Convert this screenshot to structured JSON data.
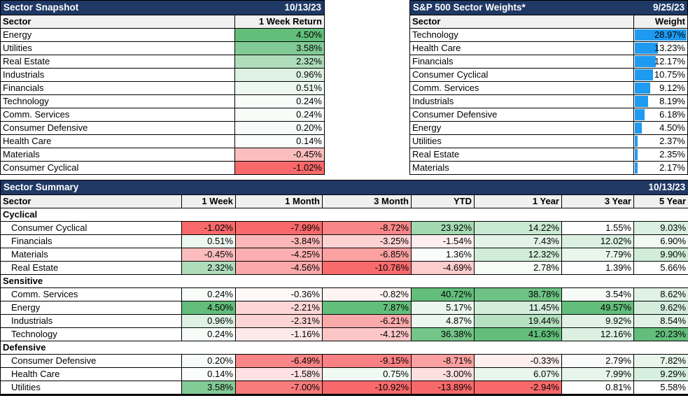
{
  "colors": {
    "title_bar_navy": "#1F3864",
    "header_row_gray": "#F0F0F0",
    "scale_negative_red": "#F8696B",
    "scale_positive_green": "#63BE7B",
    "scale_midpoint_white": "#FFFFFF",
    "weight_bar_blue": "#1E9BF0"
  },
  "chart_data": [
    {
      "type": "table",
      "name": "sector_snapshot",
      "title": "Sector Snapshot",
      "date": "10/13/23",
      "columns": [
        "Sector",
        "1 Week Return"
      ],
      "value_unit": "%",
      "heatmap": "red-white-green per column",
      "rows": [
        [
          "Energy",
          4.5
        ],
        [
          "Utilities",
          3.58
        ],
        [
          "Real Estate",
          2.32
        ],
        [
          "Industrials",
          0.96
        ],
        [
          "Financials",
          0.51
        ],
        [
          "Technology",
          0.24
        ],
        [
          "Comm. Services",
          0.24
        ],
        [
          "Consumer Defensive",
          0.2
        ],
        [
          "Health Care",
          0.14
        ],
        [
          "Materials",
          -0.45
        ],
        [
          "Consumer Cyclical",
          -1.02
        ]
      ]
    },
    {
      "type": "table",
      "name": "sp500_sector_weights",
      "title": "S&P 500 Sector Weights*",
      "date": "9/25/23",
      "columns": [
        "Sector",
        "Weight"
      ],
      "value_unit": "%",
      "bar_style": "blue data bars scaled to max weight",
      "rows": [
        [
          "Technology",
          28.97
        ],
        [
          "Health Care",
          13.23
        ],
        [
          "Financials",
          12.17
        ],
        [
          "Consumer Cyclical",
          10.75
        ],
        [
          "Comm. Services",
          9.12
        ],
        [
          "Industrials",
          8.19
        ],
        [
          "Consumer Defensive",
          6.18
        ],
        [
          "Energy",
          4.5
        ],
        [
          "Utilities",
          2.37
        ],
        [
          "Real Estate",
          2.35
        ],
        [
          "Materials",
          2.17
        ]
      ]
    },
    {
      "type": "table",
      "name": "sector_summary",
      "title": "Sector Summary",
      "date": "10/13/23",
      "columns": [
        "Sector",
        "1 Week",
        "1 Month",
        "3 Month",
        "YTD",
        "1 Year",
        "3 Year",
        "5 Year"
      ],
      "value_unit": "%",
      "heatmap": "red-white-green per column",
      "groups": [
        {
          "label": "Cyclical",
          "rows": [
            [
              "Consumer Cyclical",
              -1.02,
              -7.99,
              -8.72,
              23.92,
              14.22,
              1.55,
              9.03
            ],
            [
              "Financials",
              0.51,
              -3.84,
              -3.25,
              -1.54,
              7.43,
              12.02,
              6.9
            ],
            [
              "Materials",
              -0.45,
              -4.25,
              -6.85,
              1.36,
              12.32,
              7.79,
              9.9
            ],
            [
              "Real Estate",
              2.32,
              -4.56,
              -10.76,
              -4.69,
              2.78,
              1.39,
              5.66
            ]
          ]
        },
        {
          "label": "Sensitive",
          "rows": [
            [
              "Comm. Services",
              0.24,
              -0.36,
              -0.82,
              40.72,
              38.78,
              3.54,
              8.62
            ],
            [
              "Energy",
              4.5,
              -2.21,
              7.87,
              5.17,
              11.45,
              49.57,
              9.62
            ],
            [
              "Industrials",
              0.96,
              -2.31,
              -6.21,
              4.87,
              19.44,
              9.92,
              8.54
            ],
            [
              "Technology",
              0.24,
              -1.16,
              -4.12,
              36.38,
              41.63,
              12.16,
              20.23
            ]
          ]
        },
        {
          "label": "Defensive",
          "rows": [
            [
              "Consumer Defensive",
              0.2,
              -6.49,
              -9.15,
              -8.71,
              -0.33,
              2.79,
              7.82
            ],
            [
              "Health Care",
              0.14,
              -1.58,
              0.75,
              -3.0,
              6.07,
              7.99,
              9.29
            ],
            [
              "Utilities",
              3.58,
              -7.0,
              -10.92,
              -13.89,
              -2.94,
              0.81,
              5.58
            ]
          ]
        }
      ]
    }
  ]
}
